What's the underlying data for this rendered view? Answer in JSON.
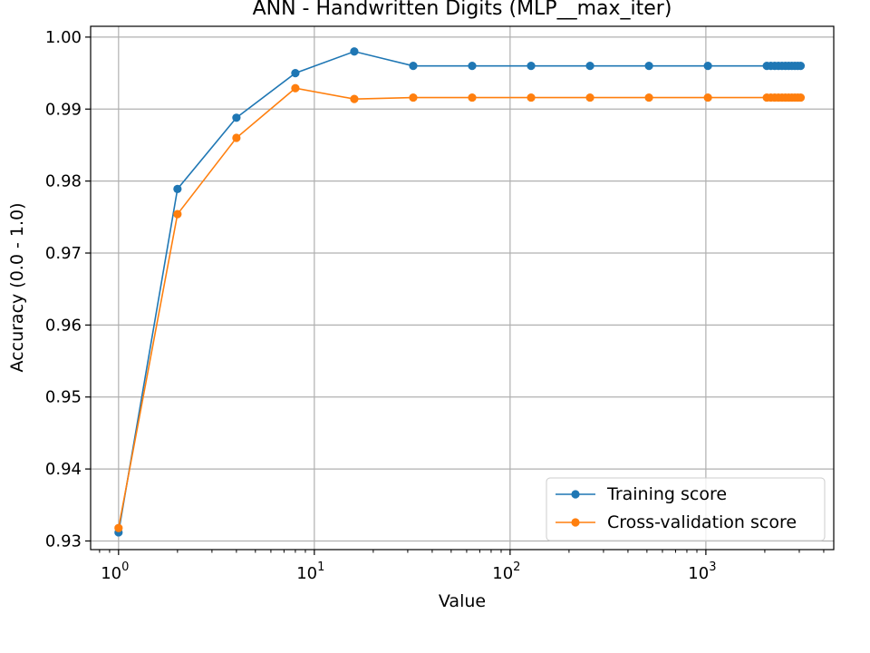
{
  "chart_data": {
    "type": "line",
    "title": "ANN - Handwritten Digits (MLP__max_iter)",
    "xlabel": "Value",
    "ylabel": "Accuracy (0.0 - 1.0)",
    "xscale": "log",
    "xlim": [
      0.72,
      4500
    ],
    "ylim": [
      0.9288,
      1.0015
    ],
    "yticks": [
      "0.93",
      "0.94",
      "0.95",
      "0.96",
      "0.97",
      "0.98",
      "0.99",
      "1.00"
    ],
    "xticks": [
      {
        "base": "10",
        "exp": "0"
      },
      {
        "base": "10",
        "exp": "1"
      },
      {
        "base": "10",
        "exp": "2"
      },
      {
        "base": "10",
        "exp": "3"
      }
    ],
    "grid": true,
    "legend_position": "bottom-right",
    "x": [
      1,
      2,
      4,
      8,
      16,
      32,
      64,
      128,
      256,
      512,
      1024,
      2048,
      2148,
      2248,
      2348,
      2448,
      2548,
      2648,
      2748,
      2848,
      2948,
      3048
    ],
    "series": [
      {
        "name": "Training score",
        "color": "#1f77b4",
        "values": [
          0.9312,
          0.9789,
          0.9888,
          0.995,
          0.998,
          0.996,
          0.996,
          0.996,
          0.996,
          0.996,
          0.996,
          0.996,
          0.996,
          0.996,
          0.996,
          0.996,
          0.996,
          0.996,
          0.996,
          0.996,
          0.996,
          0.996
        ]
      },
      {
        "name": "Cross-validation score",
        "color": "#ff7f0e",
        "values": [
          0.9318,
          0.9754,
          0.986,
          0.9929,
          0.9914,
          0.9916,
          0.9916,
          0.9916,
          0.9916,
          0.9916,
          0.9916,
          0.9916,
          0.9916,
          0.9916,
          0.9916,
          0.9916,
          0.9916,
          0.9916,
          0.9916,
          0.9916,
          0.9916,
          0.9916
        ]
      }
    ]
  }
}
